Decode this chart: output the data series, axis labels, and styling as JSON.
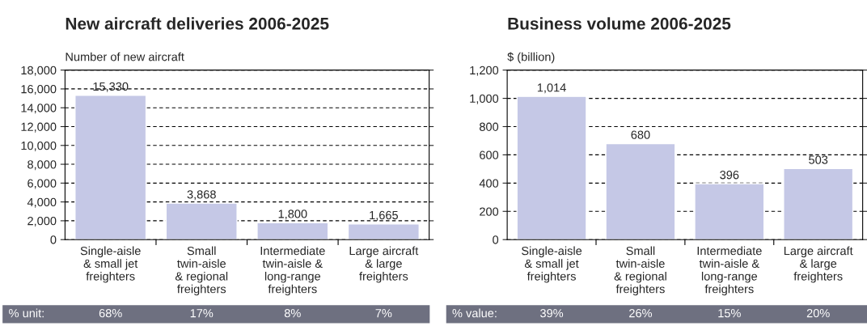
{
  "chart_data": [
    {
      "type": "bar",
      "title": "New aircraft deliveries 2006-2025",
      "ylabel": "Number of new aircraft",
      "categories": [
        "Single-aisle\n& small jet\nfreighters",
        "Small\ntwin-aisle\n& regional\nfreighters",
        "Intermediate\ntwin-aisle &\nlong-range\nfreighters",
        "Large aircraft\n& large\nfreighters"
      ],
      "values": [
        15330,
        3868,
        1800,
        1665
      ],
      "color": "#c5c8e6",
      "value_labels": [
        "15,330",
        "3,868",
        "1,800",
        "1,665"
      ],
      "ylim": [
        0,
        18000
      ],
      "yticks": [
        0,
        {
          "value": 2000,
          "label": "2,000"
        },
        {
          "value": 4000,
          "label": "4,000"
        },
        {
          "value": 6000,
          "label": "6,000"
        },
        {
          "value": 8000,
          "label": "8,000"
        },
        {
          "value": 10000,
          "label": "10,000"
        },
        {
          "value": 12000,
          "label": "12,000"
        },
        {
          "value": 14000,
          "label": "14,000"
        },
        {
          "value": 16000,
          "label": "16,000"
        },
        {
          "value": 18000,
          "label": "18,000"
        }
      ],
      "grid": "y",
      "annotations": [
        "% unit:",
        "68%",
        "17%",
        "8%",
        "7%"
      ]
    },
    {
      "type": "bar",
      "title": "Business volume 2006-2025",
      "ylabel": "$ (billion)",
      "categories": [
        "Single-aisle\n& small jet\nfreighters",
        "Small\ntwin-aisle\n& regional\nfreighters",
        "Intermediate\ntwin-aisle &\nlong-range\nfreighters",
        "Large aircraft\n& large\nfreighters"
      ],
      "values": [
        1014,
        680,
        396,
        503
      ],
      "color": "#c5c8e6",
      "value_labels": [
        "1,014",
        "680",
        "396",
        "503"
      ],
      "ylim": [
        0,
        1200
      ],
      "yticks": [
        0,
        200,
        400,
        600,
        800,
        {
          "value": 1000,
          "label": "1,000"
        },
        {
          "value": 1200,
          "label": "1,200"
        }
      ],
      "grid": "y",
      "annotations": [
        "% value:",
        "39%",
        "26%",
        "15%",
        "20%"
      ]
    }
  ]
}
